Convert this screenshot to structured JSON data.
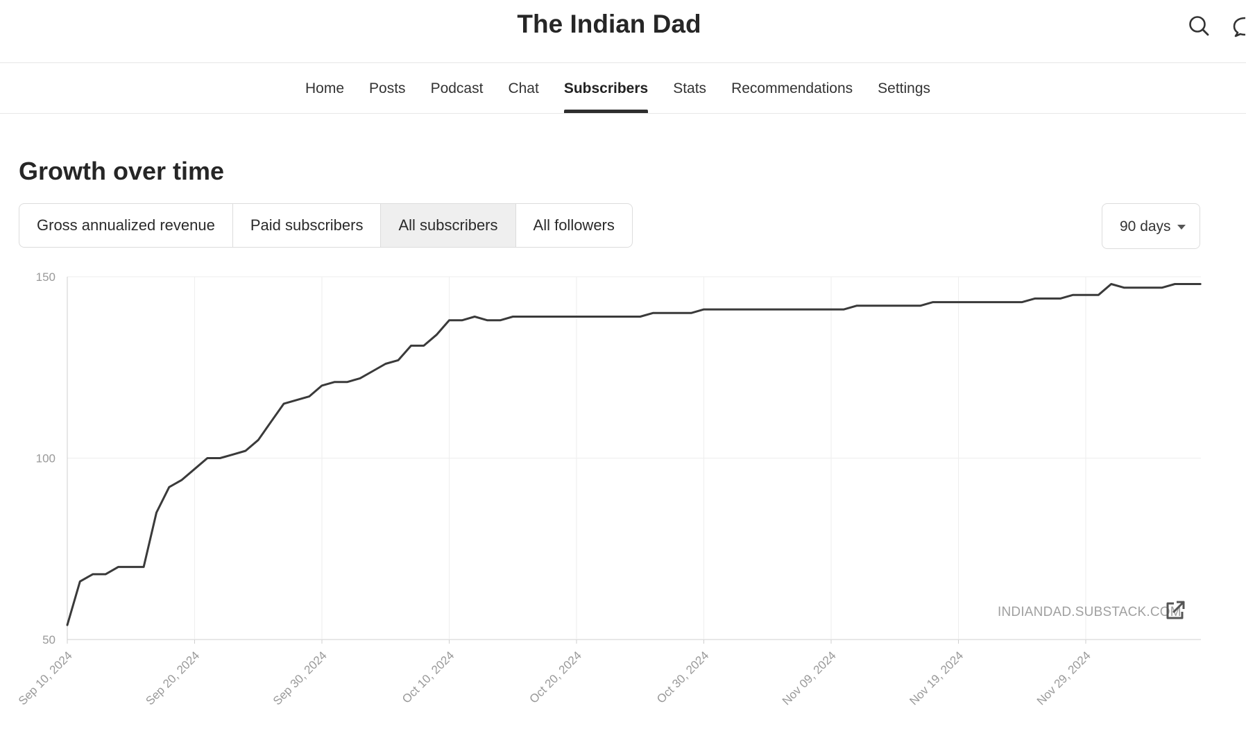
{
  "header": {
    "publication_title": "The Indian Dad",
    "search_icon": "search-icon",
    "chat_icon": "chat-bubble-icon"
  },
  "nav": {
    "items": [
      {
        "label": "Home"
      },
      {
        "label": "Posts"
      },
      {
        "label": "Podcast"
      },
      {
        "label": "Chat"
      },
      {
        "label": "Subscribers",
        "active": true
      },
      {
        "label": "Stats"
      },
      {
        "label": "Recommendations"
      },
      {
        "label": "Settings"
      }
    ]
  },
  "section": {
    "title": "Growth over time",
    "tabs": [
      {
        "label": "Gross annualized revenue"
      },
      {
        "label": "Paid subscribers"
      },
      {
        "label": "All subscribers",
        "active": true
      },
      {
        "label": "All followers"
      }
    ],
    "range": {
      "label": "90 days"
    }
  },
  "chart_data": {
    "type": "line",
    "title": "",
    "xlabel": "",
    "ylabel": "",
    "ylim": [
      50,
      150
    ],
    "yticks": [
      50,
      100,
      150
    ],
    "grid": true,
    "xticks": [
      "Sep 10, 2024",
      "Sep 20, 2024",
      "Sep 30, 2024",
      "Oct 10, 2024",
      "Oct 20, 2024",
      "Oct 30, 2024",
      "Nov 09, 2024",
      "Nov 19, 2024",
      "Nov 29, 2024"
    ],
    "x": [
      "2024-09-10",
      "2024-09-11",
      "2024-09-12",
      "2024-09-13",
      "2024-09-14",
      "2024-09-15",
      "2024-09-16",
      "2024-09-17",
      "2024-09-18",
      "2024-09-19",
      "2024-09-20",
      "2024-09-21",
      "2024-09-22",
      "2024-09-23",
      "2024-09-24",
      "2024-09-25",
      "2024-09-26",
      "2024-09-27",
      "2024-09-28",
      "2024-09-29",
      "2024-09-30",
      "2024-10-01",
      "2024-10-02",
      "2024-10-03",
      "2024-10-04",
      "2024-10-05",
      "2024-10-06",
      "2024-10-07",
      "2024-10-08",
      "2024-10-09",
      "2024-10-10",
      "2024-10-11",
      "2024-10-12",
      "2024-10-13",
      "2024-10-14",
      "2024-10-15",
      "2024-10-16",
      "2024-10-17",
      "2024-10-18",
      "2024-10-19",
      "2024-10-20",
      "2024-10-21",
      "2024-10-22",
      "2024-10-23",
      "2024-10-24",
      "2024-10-25",
      "2024-10-26",
      "2024-10-27",
      "2024-10-28",
      "2024-10-29",
      "2024-10-30",
      "2024-10-31",
      "2024-11-01",
      "2024-11-02",
      "2024-11-03",
      "2024-11-04",
      "2024-11-05",
      "2024-11-06",
      "2024-11-07",
      "2024-11-08",
      "2024-11-09",
      "2024-11-10",
      "2024-11-11",
      "2024-11-12",
      "2024-11-13",
      "2024-11-14",
      "2024-11-15",
      "2024-11-16",
      "2024-11-17",
      "2024-11-18",
      "2024-11-19",
      "2024-11-20",
      "2024-11-21",
      "2024-11-22",
      "2024-11-23",
      "2024-11-24",
      "2024-11-25",
      "2024-11-26",
      "2024-11-27",
      "2024-11-28",
      "2024-11-29",
      "2024-11-30",
      "2024-12-01",
      "2024-12-02",
      "2024-12-03",
      "2024-12-04",
      "2024-12-05",
      "2024-12-06",
      "2024-12-07",
      "2024-12-08"
    ],
    "series": [
      {
        "values": [
          54,
          66,
          68,
          68,
          70,
          70,
          70,
          85,
          92,
          94,
          97,
          100,
          100,
          101,
          102,
          105,
          110,
          115,
          116,
          117,
          120,
          121,
          121,
          122,
          124,
          126,
          127,
          131,
          131,
          134,
          138,
          138,
          139,
          138,
          138,
          139,
          139,
          139,
          139,
          139,
          139,
          139,
          139,
          139,
          139,
          139,
          140,
          140,
          140,
          140,
          141,
          141,
          141,
          141,
          141,
          141,
          141,
          141,
          141,
          141,
          141,
          141,
          142,
          142,
          142,
          142,
          142,
          142,
          143,
          143,
          143,
          143,
          143,
          143,
          143,
          143,
          144,
          144,
          144,
          145,
          145,
          145,
          148,
          147,
          147,
          147,
          147,
          148,
          148,
          148
        ]
      }
    ],
    "color": "#3a3a3a"
  },
  "watermark": {
    "text": "INDIANDAD.SUBSTACK.COM",
    "icon": "external-link-icon"
  }
}
